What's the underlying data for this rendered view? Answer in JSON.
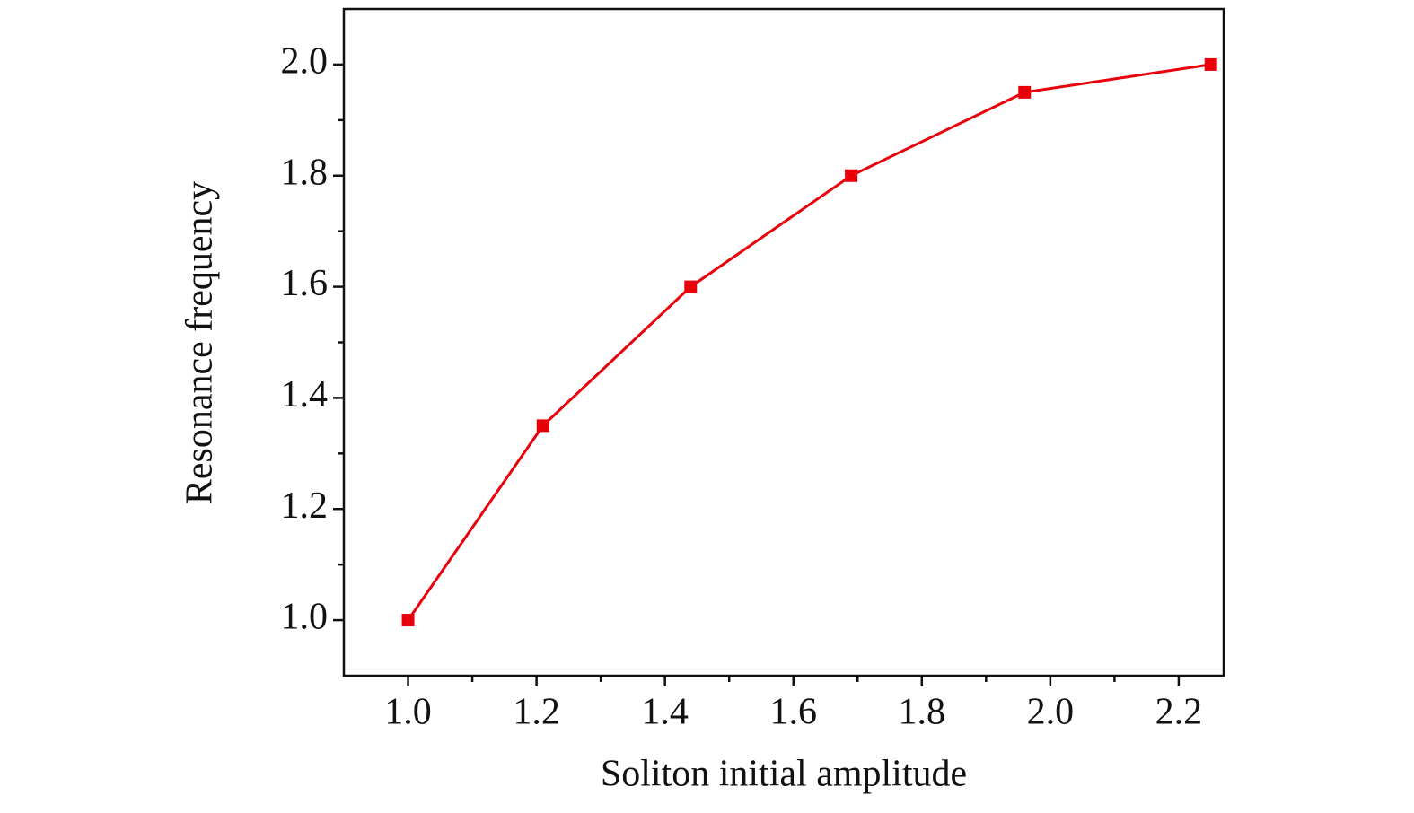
{
  "chart_data": {
    "type": "line",
    "x_label": "Soliton initial amplitude",
    "y_label": "Resonance frequency",
    "x": [
      1.0,
      1.21,
      1.44,
      1.69,
      1.96,
      2.25
    ],
    "series": [
      {
        "color": "#e8000b",
        "values": [
          1.0,
          1.35,
          1.6,
          1.8,
          1.95,
          2.0
        ]
      }
    ],
    "xlim": [
      0.9,
      2.27
    ],
    "ylim": [
      0.9,
      2.1
    ],
    "xticks": [
      {
        "value": 1,
        "label": "1.0"
      },
      1.2,
      1.4,
      1.6,
      1.8,
      {
        "value": 2,
        "label": "2.0"
      },
      2.2
    ],
    "yticks": [
      {
        "value": 1,
        "label": "1.0"
      },
      1.2,
      1.4,
      1.6,
      1.8,
      {
        "value": 2,
        "label": "2.0"
      }
    ],
    "x_minor_ticks": [
      1.1,
      1.3,
      1.5,
      1.7,
      1.9,
      2.1
    ],
    "y_minor_ticks": [
      1.1,
      1.3,
      1.5,
      1.7,
      1.9
    ],
    "grid": false
  }
}
